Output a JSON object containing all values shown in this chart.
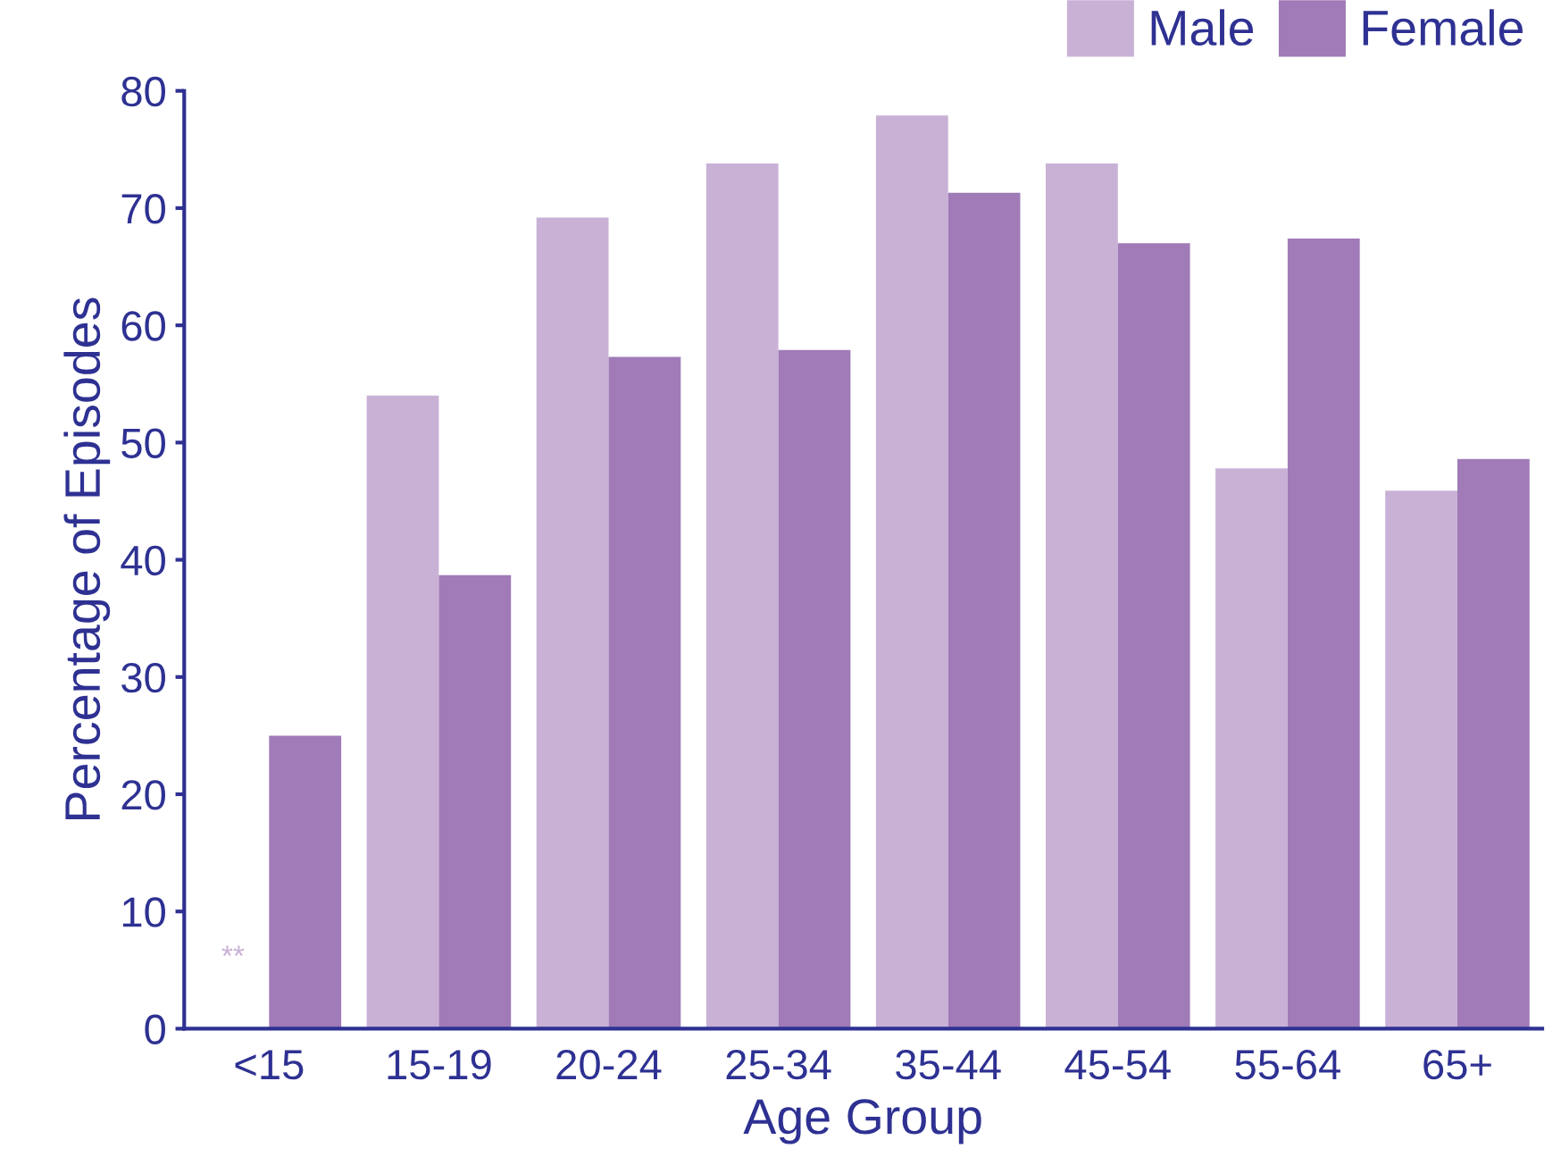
{
  "chart_data": {
    "type": "bar",
    "xlabel": "Age Group",
    "ylabel": "Percentage of Episodes",
    "categories": [
      "<15",
      "15-19",
      "20-24",
      "25-34",
      "35-44",
      "45-54",
      "55-64",
      "65+"
    ],
    "series": [
      {
        "name": "Male",
        "color": "#c9b1d6",
        "values": [
          null,
          54,
          69.2,
          73.8,
          77.9,
          73.8,
          47.8,
          45.9
        ]
      },
      {
        "name": "Female",
        "color": "#a07bb7",
        "values": [
          25,
          38.7,
          57.3,
          57.9,
          71.3,
          67,
          67.4,
          48.6
        ]
      }
    ],
    "ylim": [
      0,
      80
    ],
    "yticks": [
      0,
      10,
      20,
      30,
      40,
      50,
      60,
      70,
      80
    ],
    "grid": false,
    "legend": "top right",
    "annotations": [
      {
        "text": "**",
        "x": "<15",
        "y": 6
      }
    ]
  }
}
